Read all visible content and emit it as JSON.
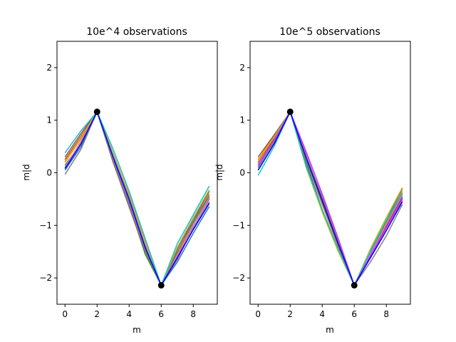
{
  "chart_data": [
    {
      "type": "line",
      "title": "10e^4 observations",
      "xlabel": "m",
      "ylabel": "m|d",
      "xlim": [
        -0.5,
        9.5
      ],
      "ylim": [
        -2.5,
        2.5
      ],
      "xticks": [
        0,
        2,
        4,
        6,
        8
      ],
      "yticks": [
        -2,
        -1,
        0,
        1,
        2
      ],
      "ytick_labels": [
        "−2",
        "−1",
        "0",
        "1",
        "2"
      ],
      "x": [
        0,
        1,
        2,
        3,
        4,
        5,
        6,
        7,
        8,
        9
      ],
      "series": [
        {
          "color": "#1f77b4",
          "values": [
            0.05,
            0.5,
            1.16,
            0.3,
            -0.55,
            -1.4,
            -2.14,
            -1.7,
            -1.15,
            -0.64
          ]
        },
        {
          "color": "#ff7f0e",
          "values": [
            0.2,
            0.65,
            1.16,
            0.35,
            -0.4,
            -1.3,
            -2.14,
            -1.55,
            -0.95,
            -0.4
          ]
        },
        {
          "color": "#2ca02c",
          "values": [
            0.15,
            0.55,
            1.16,
            0.25,
            -0.6,
            -1.55,
            -2.14,
            -1.5,
            -0.95,
            -0.45
          ]
        },
        {
          "color": "#d62728",
          "values": [
            0.25,
            0.7,
            1.16,
            0.3,
            -0.5,
            -1.4,
            -2.14,
            -1.6,
            -1.0,
            -0.5
          ]
        },
        {
          "color": "#9467bd",
          "values": [
            0.1,
            0.6,
            1.16,
            0.28,
            -0.55,
            -1.45,
            -2.14,
            -1.65,
            -1.05,
            -0.55
          ]
        },
        {
          "color": "#8c564b",
          "values": [
            0.3,
            0.75,
            1.16,
            0.2,
            -0.65,
            -1.5,
            -2.14,
            -1.45,
            -0.9,
            -0.35
          ]
        },
        {
          "color": "#e377c2",
          "values": [
            0.12,
            0.58,
            1.16,
            0.32,
            -0.45,
            -1.35,
            -2.14,
            -1.58,
            -1.0,
            -0.48
          ]
        },
        {
          "color": "#7f7f7f",
          "values": [
            -0.03,
            0.45,
            1.16,
            0.22,
            -0.62,
            -1.48,
            -2.14,
            -1.52,
            -0.92,
            -0.42
          ]
        },
        {
          "color": "#bcbd22",
          "values": [
            0.22,
            0.68,
            1.16,
            0.38,
            -0.42,
            -1.32,
            -2.14,
            -1.42,
            -0.85,
            -0.32
          ]
        },
        {
          "color": "#17becf",
          "values": [
            0.38,
            0.8,
            1.16,
            0.45,
            -0.35,
            -1.25,
            -2.14,
            -1.35,
            -0.8,
            -0.25
          ]
        },
        {
          "color": "#0000ff",
          "values": [
            0.08,
            0.55,
            1.16,
            0.3,
            -0.5,
            -1.42,
            -2.14,
            -1.62,
            -1.08,
            -0.58
          ]
        }
      ],
      "points": [
        {
          "x": 2,
          "y": 1.16
        },
        {
          "x": 6,
          "y": -2.14
        }
      ],
      "point_color": "#000000"
    },
    {
      "type": "line",
      "title": "10e^5 observations",
      "xlabel": "m",
      "ylabel": "m|d",
      "xlim": [
        -0.5,
        9.5
      ],
      "ylim": [
        -2.5,
        2.5
      ],
      "xticks": [
        0,
        2,
        4,
        6,
        8
      ],
      "yticks": [
        -2,
        -1,
        0,
        1,
        2
      ],
      "ytick_labels": [
        "−2",
        "−1",
        "0",
        "1",
        "2"
      ],
      "x": [
        0,
        1,
        2,
        3,
        4,
        5,
        6,
        7,
        8,
        9
      ],
      "series": [
        {
          "color": "#1f77b4",
          "values": [
            0.1,
            0.6,
            1.16,
            0.2,
            -0.7,
            -1.45,
            -2.14,
            -1.55,
            -1.0,
            -0.45
          ]
        },
        {
          "color": "#ff7f0e",
          "values": [
            0.25,
            0.7,
            1.16,
            0.25,
            -0.6,
            -1.4,
            -2.14,
            -1.5,
            -0.95,
            -0.35
          ]
        },
        {
          "color": "#2ca02c",
          "values": [
            0.05,
            0.55,
            1.16,
            0.15,
            -0.72,
            -1.48,
            -2.14,
            -1.52,
            -0.92,
            -0.4
          ]
        },
        {
          "color": "#d62728",
          "values": [
            0.2,
            0.65,
            1.16,
            0.3,
            -0.55,
            -1.35,
            -2.14,
            -1.58,
            -1.02,
            -0.48
          ]
        },
        {
          "color": "#9467bd",
          "values": [
            0.15,
            0.62,
            1.16,
            0.35,
            -0.5,
            -1.32,
            -2.14,
            -1.6,
            -1.05,
            -0.52
          ]
        },
        {
          "color": "#8c564b",
          "values": [
            0.3,
            0.72,
            1.16,
            0.28,
            -0.58,
            -1.38,
            -2.14,
            -1.48,
            -0.9,
            -0.3
          ]
        },
        {
          "color": "#e377c2",
          "values": [
            0.18,
            0.6,
            1.16,
            0.32,
            -0.48,
            -1.3,
            -2.14,
            -1.55,
            -0.98,
            -0.42
          ]
        },
        {
          "color": "#7f7f7f",
          "values": [
            0.12,
            0.58,
            1.16,
            0.3,
            -0.45,
            -1.28,
            -2.14,
            -1.7,
            -1.2,
            -0.6
          ]
        },
        {
          "color": "#bcbd22",
          "values": [
            0.22,
            0.68,
            1.16,
            0.1,
            -0.75,
            -1.5,
            -2.14,
            -1.45,
            -0.85,
            -0.28
          ]
        },
        {
          "color": "#17becf",
          "values": [
            -0.05,
            0.5,
            1.16,
            0.12,
            -0.7,
            -1.45,
            -2.14,
            -1.5,
            -0.9,
            -0.38
          ]
        },
        {
          "color": "#cc33ff",
          "values": [
            0.15,
            0.62,
            1.16,
            0.4,
            -0.4,
            -1.25,
            -2.14,
            -1.58,
            -1.05,
            -0.5
          ]
        },
        {
          "color": "#0000ff",
          "values": [
            0.05,
            0.55,
            1.16,
            0.28,
            -0.52,
            -1.35,
            -2.14,
            -1.62,
            -1.1,
            -0.55
          ]
        }
      ],
      "points": [
        {
          "x": 2,
          "y": 1.16
        },
        {
          "x": 6,
          "y": -2.14
        }
      ],
      "point_color": "#000000"
    }
  ]
}
